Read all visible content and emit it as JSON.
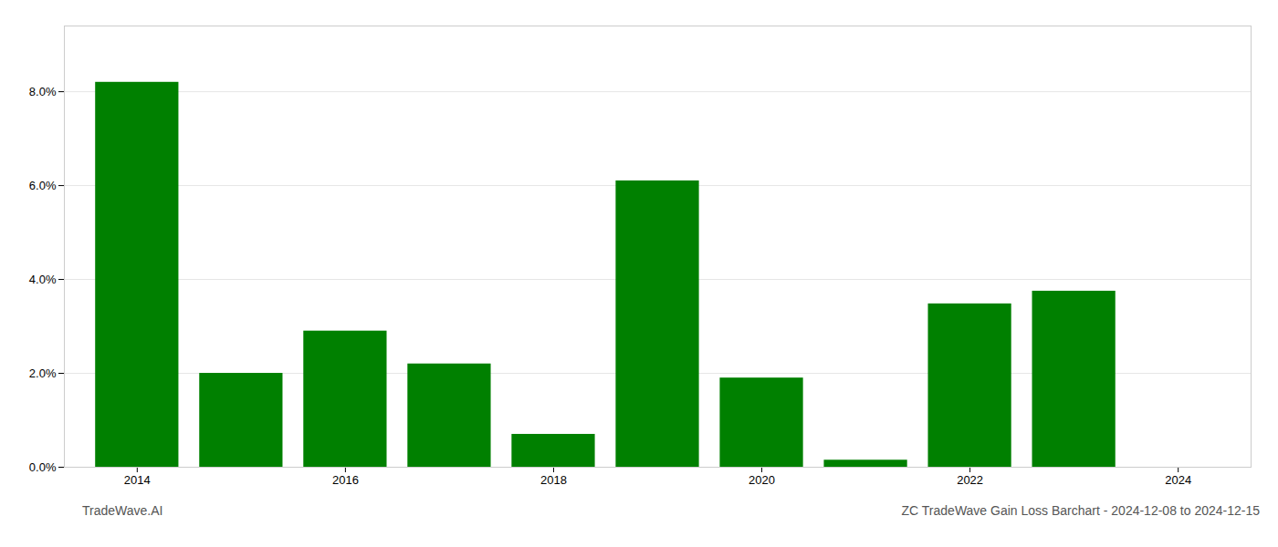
{
  "chart_data": {
    "type": "bar",
    "title": "ZC TradeWave Gain Loss Barchart - 2024-12-08 to 2024-12-15",
    "annotations": [
      "TradeWave.AI"
    ],
    "x": [
      2014,
      2015,
      2016,
      2017,
      2018,
      2019,
      2020,
      2021,
      2022,
      2023
    ],
    "values": [
      0.082,
      0.02,
      0.029,
      0.022,
      0.007,
      0.061,
      0.019,
      0.0015,
      0.0348,
      0.0375
    ],
    "color": "#008000",
    "xlim": [
      2013.3,
      2024.7
    ],
    "xticks": [
      2014,
      2016,
      2018,
      2020,
      2022,
      2024
    ],
    "ylim": [
      0.0,
      0.094
    ],
    "yticks": [
      {
        "value": 0.0,
        "label": "0.0%"
      },
      {
        "value": 0.02,
        "label": "2.0%"
      },
      {
        "value": 0.04,
        "label": "4.0%"
      },
      {
        "value": 0.06,
        "label": "6.0%"
      },
      {
        "value": 0.08,
        "label": "8.0%"
      }
    ],
    "grid": true
  }
}
